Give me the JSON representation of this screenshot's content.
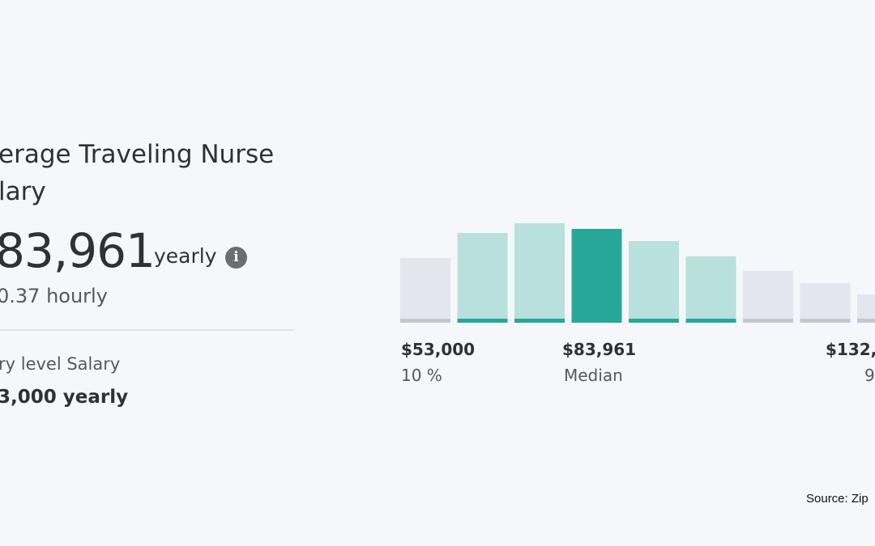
{
  "summary": {
    "title": "erage Traveling Nurse\nlary",
    "title_line1": "erage Traveling Nurse",
    "title_line2": "lary",
    "amount": "83,961",
    "amount_unit": "yearly",
    "info_icon": "info-icon",
    "hourly": "0.37 hourly",
    "entry_label": "ry level Salary",
    "entry_value": "3,000 yearly"
  },
  "colors": {
    "median": "#27a797",
    "in_range": "#b8e0dc",
    "in_range_base": "#27a797",
    "out_range": "#e4e6ef",
    "out_range_base": "#c3c6d2"
  },
  "chart_data": {
    "type": "bar",
    "title": "",
    "xlabel": "",
    "ylabel": "",
    "values": [
      80,
      111,
      123,
      116,
      101,
      82,
      64,
      49,
      35
    ],
    "highlight": [
      "out",
      "in",
      "in",
      "median",
      "in",
      "in",
      "out",
      "out",
      "out"
    ],
    "grid": false,
    "markers": [
      {
        "value": "$53,000",
        "label": "10 %"
      },
      {
        "value": "$83,961",
        "label": "Median"
      },
      {
        "value": "$132,",
        "label": "9"
      }
    ]
  },
  "source": "Source: Zip"
}
